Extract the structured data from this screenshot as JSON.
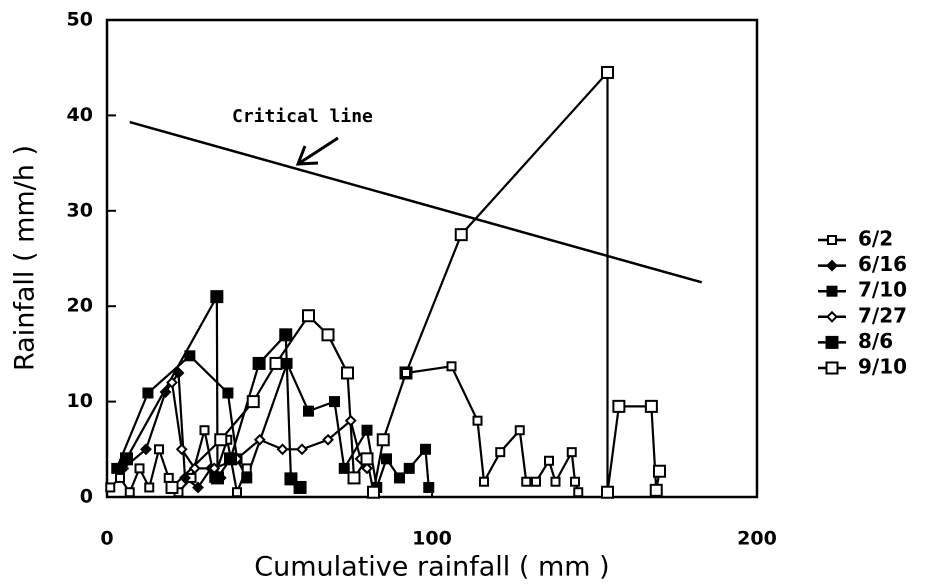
{
  "chart_data": {
    "type": "line",
    "x_label": "Cumulative rainfall ( mm )",
    "y_label": "Rainfall ( mm/h )",
    "xlim": [
      0,
      200
    ],
    "xticks": [
      0,
      100,
      200
    ],
    "ylim": [
      0,
      50
    ],
    "yticks": [
      0,
      10,
      20,
      30,
      40,
      50
    ],
    "critical_line": {
      "label": "Critical line",
      "x": [
        7,
        183
      ],
      "y": [
        39.3,
        22.5
      ],
      "color": "#000000"
    },
    "series": [
      {
        "name": "6/2",
        "color": "#000000",
        "marker": "square-open",
        "marker_size": 8,
        "x": [
          1,
          4,
          7,
          10,
          13,
          16,
          19,
          22,
          26,
          30,
          33,
          37,
          40,
          43
        ],
        "values": [
          1,
          2,
          0.5,
          3,
          1,
          5,
          2,
          0.5,
          2,
          7,
          2,
          6,
          0.5,
          3
        ]
      },
      {
        "name": "6/16",
        "color": "#000000",
        "marker": "diamond-filled",
        "marker_size": 9,
        "x": [
          5,
          12,
          18,
          22,
          24,
          28,
          32,
          35
        ],
        "values": [
          3,
          5,
          11,
          13,
          2,
          1,
          3,
          2
        ]
      },
      {
        "name": "7/10",
        "color": "#000000",
        "marker": "square-filled",
        "marker_size": 9,
        "x": [
          3,
          12.6,
          25.5,
          37.2,
          40,
          43,
          55.4,
          62,
          70,
          73,
          80,
          83,
          86,
          90,
          93,
          98,
          99
        ],
        "values": [
          3,
          10.9,
          14.8,
          10.9,
          4,
          2,
          14,
          9,
          10,
          3,
          7,
          1,
          4,
          2,
          3,
          5,
          1
        ]
      },
      {
        "name": "7/27",
        "color": "#000000",
        "marker": "diamond-open",
        "marker_size": 9,
        "x": [
          20,
          23,
          27,
          33,
          40,
          47,
          54,
          60,
          68,
          75,
          78,
          80
        ],
        "values": [
          12,
          5,
          3,
          3,
          4,
          6,
          5,
          5,
          6,
          8,
          4,
          3
        ]
      },
      {
        "name": "8/6",
        "color": "#000000",
        "marker": "square-filled",
        "marker_size": 11,
        "x": [
          6,
          33.8,
          34,
          38,
          46.8,
          55,
          56.6,
          59.4
        ],
        "values": [
          4,
          21,
          2,
          4,
          14,
          17,
          1.9,
          1
        ]
      },
      {
        "name": "9/10",
        "color": "#000000",
        "marker": "square-open",
        "marker_size": 11,
        "x": [
          20,
          35,
          45,
          52,
          62,
          68,
          74,
          76,
          80,
          82,
          85,
          92,
          109,
          154,
          154,
          157.5,
          167.5,
          169,
          170
        ],
        "values": [
          1,
          6,
          10,
          14,
          19,
          17,
          13,
          2,
          4,
          0.5,
          6,
          13,
          27.5,
          44.5,
          0.5,
          9.5,
          9.5,
          0.7,
          2.7
        ]
      },
      {
        "name": "6/2",
        "color": "#000000",
        "marker": "square-open",
        "marker_size": 8,
        "x": [
          92,
          106,
          114,
          116,
          121,
          127,
          129,
          132,
          136,
          138,
          143,
          144,
          145
        ],
        "values": [
          13,
          13.7,
          8,
          1.6,
          4.7,
          7,
          1.6,
          1.6,
          3.8,
          1.6,
          4.7,
          1.6,
          0.5
        ]
      }
    ],
    "legend_series": [
      0,
      1,
      2,
      3,
      4,
      5
    ]
  }
}
